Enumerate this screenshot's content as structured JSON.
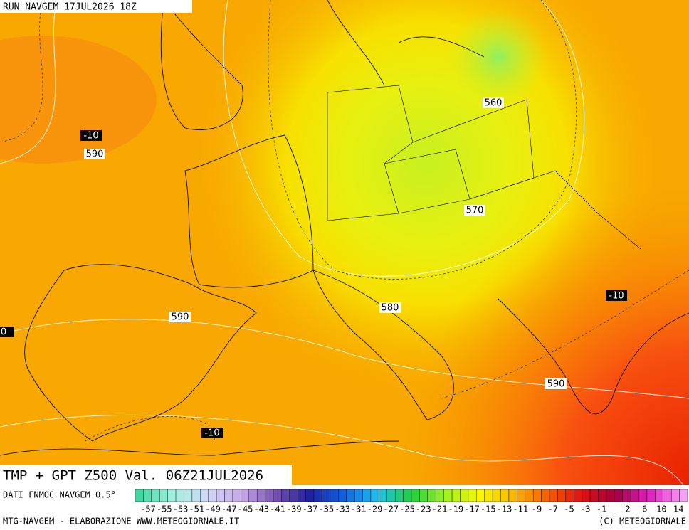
{
  "header": "RUN NAVGEM 17JUL2026 18Z",
  "map": {
    "labels": [
      "560",
      "570",
      "580",
      "590",
      "590",
      "590",
      "-10",
      "-10",
      "-10",
      "0"
    ]
  },
  "title": "TMP + GPT Z500 Val. 06Z21JUL2026",
  "legend": {
    "source": "DATI FNMOC NAVGEM 0.5°",
    "colors": [
      "#40d8a0",
      "#a0f0e0",
      "#d0d8f8",
      "#c8a8e8",
      "#7850b0",
      "#2020a0",
      "#1060e0",
      "#20c0f0",
      "#20d040",
      "#a0f020",
      "#f8f800",
      "#f8b800",
      "#f86000",
      "#e01010",
      "#a00040",
      "#e020c0",
      "#f8a0f8"
    ],
    "ticks": [
      -57,
      -55,
      -53,
      -51,
      -49,
      -47,
      -45,
      -43,
      -41,
      -39,
      -37,
      -35,
      -33,
      -31,
      -29,
      -27,
      -25,
      -23,
      -21,
      -19,
      -17,
      -15,
      -13,
      -11,
      -9,
      -7,
      -5,
      -3,
      -1,
      2,
      6,
      10,
      14
    ]
  },
  "footer": {
    "left": "MTG-NAVGEM - ELABORAZIONE WWW.METEOGIORNALE.IT",
    "right": "(C) METEOGIORNALE"
  }
}
